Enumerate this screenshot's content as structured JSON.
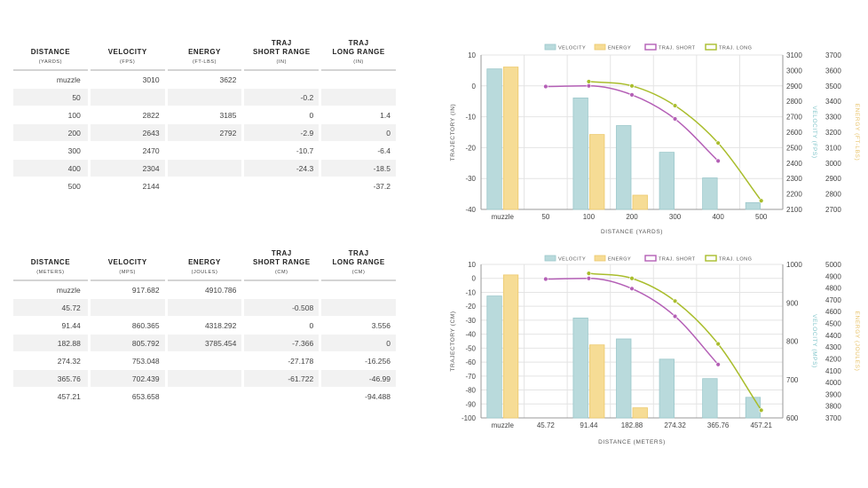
{
  "tables": [
    {
      "headers": [
        {
          "title": "DISTANCE",
          "title2": "",
          "unit": "(YARDS)"
        },
        {
          "title": "VELOCITY",
          "title2": "",
          "unit": "(FPS)"
        },
        {
          "title": "ENERGY",
          "title2": "",
          "unit": "(FT-LBS)"
        },
        {
          "title": "TRAJ",
          "title2": "SHORT RANGE",
          "unit": "(IN)"
        },
        {
          "title": "TRAJ",
          "title2": "LONG RANGE",
          "unit": "(IN)"
        }
      ],
      "rows": [
        [
          "muzzle",
          "3010",
          "3622",
          "",
          ""
        ],
        [
          "50",
          "",
          "",
          "-0.2",
          ""
        ],
        [
          "100",
          "2822",
          "3185",
          "0",
          "1.4"
        ],
        [
          "200",
          "2643",
          "2792",
          "-2.9",
          "0"
        ],
        [
          "300",
          "2470",
          "",
          "-10.7",
          "-6.4"
        ],
        [
          "400",
          "2304",
          "",
          "-24.3",
          "-18.5"
        ],
        [
          "500",
          "2144",
          "",
          "",
          "-37.2"
        ]
      ]
    },
    {
      "headers": [
        {
          "title": "DISTANCE",
          "title2": "",
          "unit": "(METERS)"
        },
        {
          "title": "VELOCITY",
          "title2": "",
          "unit": "(MPS)"
        },
        {
          "title": "ENERGY",
          "title2": "",
          "unit": "(JOULES)"
        },
        {
          "title": "TRAJ",
          "title2": "SHORT RANGE",
          "unit": "(CM)"
        },
        {
          "title": "TRAJ",
          "title2": "LONG RANGE",
          "unit": "(CM)"
        }
      ],
      "rows": [
        [
          "muzzle",
          "917.682",
          "4910.786",
          "",
          ""
        ],
        [
          "45.72",
          "",
          "",
          "-0.508",
          ""
        ],
        [
          "91.44",
          "860.365",
          "4318.292",
          "0",
          "3.556"
        ],
        [
          "182.88",
          "805.792",
          "3785.454",
          "-7.366",
          "0"
        ],
        [
          "274.32",
          "753.048",
          "",
          "-27.178",
          "-16.256"
        ],
        [
          "365.76",
          "702.439",
          "",
          "-61.722",
          "-46.99"
        ],
        [
          "457.21",
          "653.658",
          "",
          "",
          "-94.488"
        ]
      ]
    }
  ],
  "colors": {
    "velocity": "#b9dadc",
    "velocity_stroke": "#9cc8cb",
    "energy": "#f6dc95",
    "energy_stroke": "#ecc96b",
    "traj_short": "#b45fb6",
    "traj_long": "#a9bd2c",
    "grid": "#e4e4e4",
    "axis_text": "#444444",
    "vel_axis_text": "#7fc4c9",
    "energy_axis_text": "#e8c36a"
  },
  "chart_data": [
    {
      "type": "bar",
      "legend": [
        "VELOCITY",
        "ENERGY",
        "TRAJ. SHORT",
        "TRAJ. LONG"
      ],
      "legend_position": "top",
      "categories": [
        "muzzle",
        "50",
        "100",
        "200",
        "300",
        "400",
        "500"
      ],
      "xlabel": "DISTANCE (YARDS)",
      "ylabel": "TRAJECTORY (IN)",
      "ylabel_right1": "VELOCITY (FPS)",
      "ylabel_right2": "ENERGY (FT-LBS)",
      "ylim": [
        -40,
        10
      ],
      "yticks": [
        10,
        0,
        -10,
        -20,
        -30,
        -40
      ],
      "y2lim": [
        2100,
        3100
      ],
      "y2ticks": [
        3100,
        3000,
        2900,
        2800,
        2700,
        2600,
        2500,
        2400,
        2300,
        2200,
        2100
      ],
      "y3lim": [
        2700,
        3700
      ],
      "y3ticks": [
        3700,
        3600,
        3500,
        3400,
        3300,
        3200,
        3100,
        3000,
        2900,
        2800,
        2700
      ],
      "series": [
        {
          "name": "VELOCITY",
          "axis": "y2",
          "values": [
            3010,
            null,
            2822,
            2643,
            2470,
            2304,
            2144
          ]
        },
        {
          "name": "ENERGY",
          "axis": "y3",
          "values": [
            3622,
            null,
            3185,
            2792,
            null,
            null,
            null
          ]
        },
        {
          "name": "TRAJ. SHORT",
          "axis": "y",
          "values": [
            null,
            -0.2,
            0,
            -2.9,
            -10.7,
            -24.3,
            null
          ]
        },
        {
          "name": "TRAJ. LONG",
          "axis": "y",
          "values": [
            null,
            null,
            1.4,
            0,
            -6.4,
            -18.5,
            -37.2
          ]
        }
      ]
    },
    {
      "type": "bar",
      "legend": [
        "VELOCITY",
        "ENERGY",
        "TRAJ. SHORT",
        "TRAJ. LONG"
      ],
      "legend_position": "top",
      "categories": [
        "muzzle",
        "45.72",
        "91.44",
        "182.88",
        "274.32",
        "365.76",
        "457.21"
      ],
      "xlabel": "DISTANCE (METERS)",
      "ylabel": "TRAJECTORY (CM)",
      "ylabel_right1": "VELOCITY (MPS)",
      "ylabel_right2": "ENERGY (JOULES)",
      "ylim": [
        -100,
        10
      ],
      "yticks": [
        10,
        0,
        -10,
        -20,
        -30,
        -40,
        -50,
        -60,
        -70,
        -80,
        -90,
        -100
      ],
      "y2lim": [
        600,
        1000
      ],
      "y2ticks": [
        1000,
        900,
        800,
        700,
        600
      ],
      "y3lim": [
        3700,
        5000
      ],
      "y3ticks": [
        5000,
        4900,
        4800,
        4700,
        4600,
        4500,
        4400,
        4300,
        4200,
        4100,
        4000,
        3900,
        3800,
        3700
      ],
      "series": [
        {
          "name": "VELOCITY",
          "axis": "y2",
          "values": [
            917.682,
            null,
            860.365,
            805.792,
            753.048,
            702.439,
            653.658
          ]
        },
        {
          "name": "ENERGY",
          "axis": "y3",
          "values": [
            4910.786,
            null,
            4318.292,
            3785.454,
            null,
            null,
            null
          ]
        },
        {
          "name": "TRAJ. SHORT",
          "axis": "y",
          "values": [
            null,
            -0.508,
            0,
            -7.366,
            -27.178,
            -61.722,
            null
          ]
        },
        {
          "name": "TRAJ. LONG",
          "axis": "y",
          "values": [
            null,
            null,
            3.556,
            0,
            -16.256,
            -46.99,
            -94.488
          ]
        }
      ]
    }
  ]
}
